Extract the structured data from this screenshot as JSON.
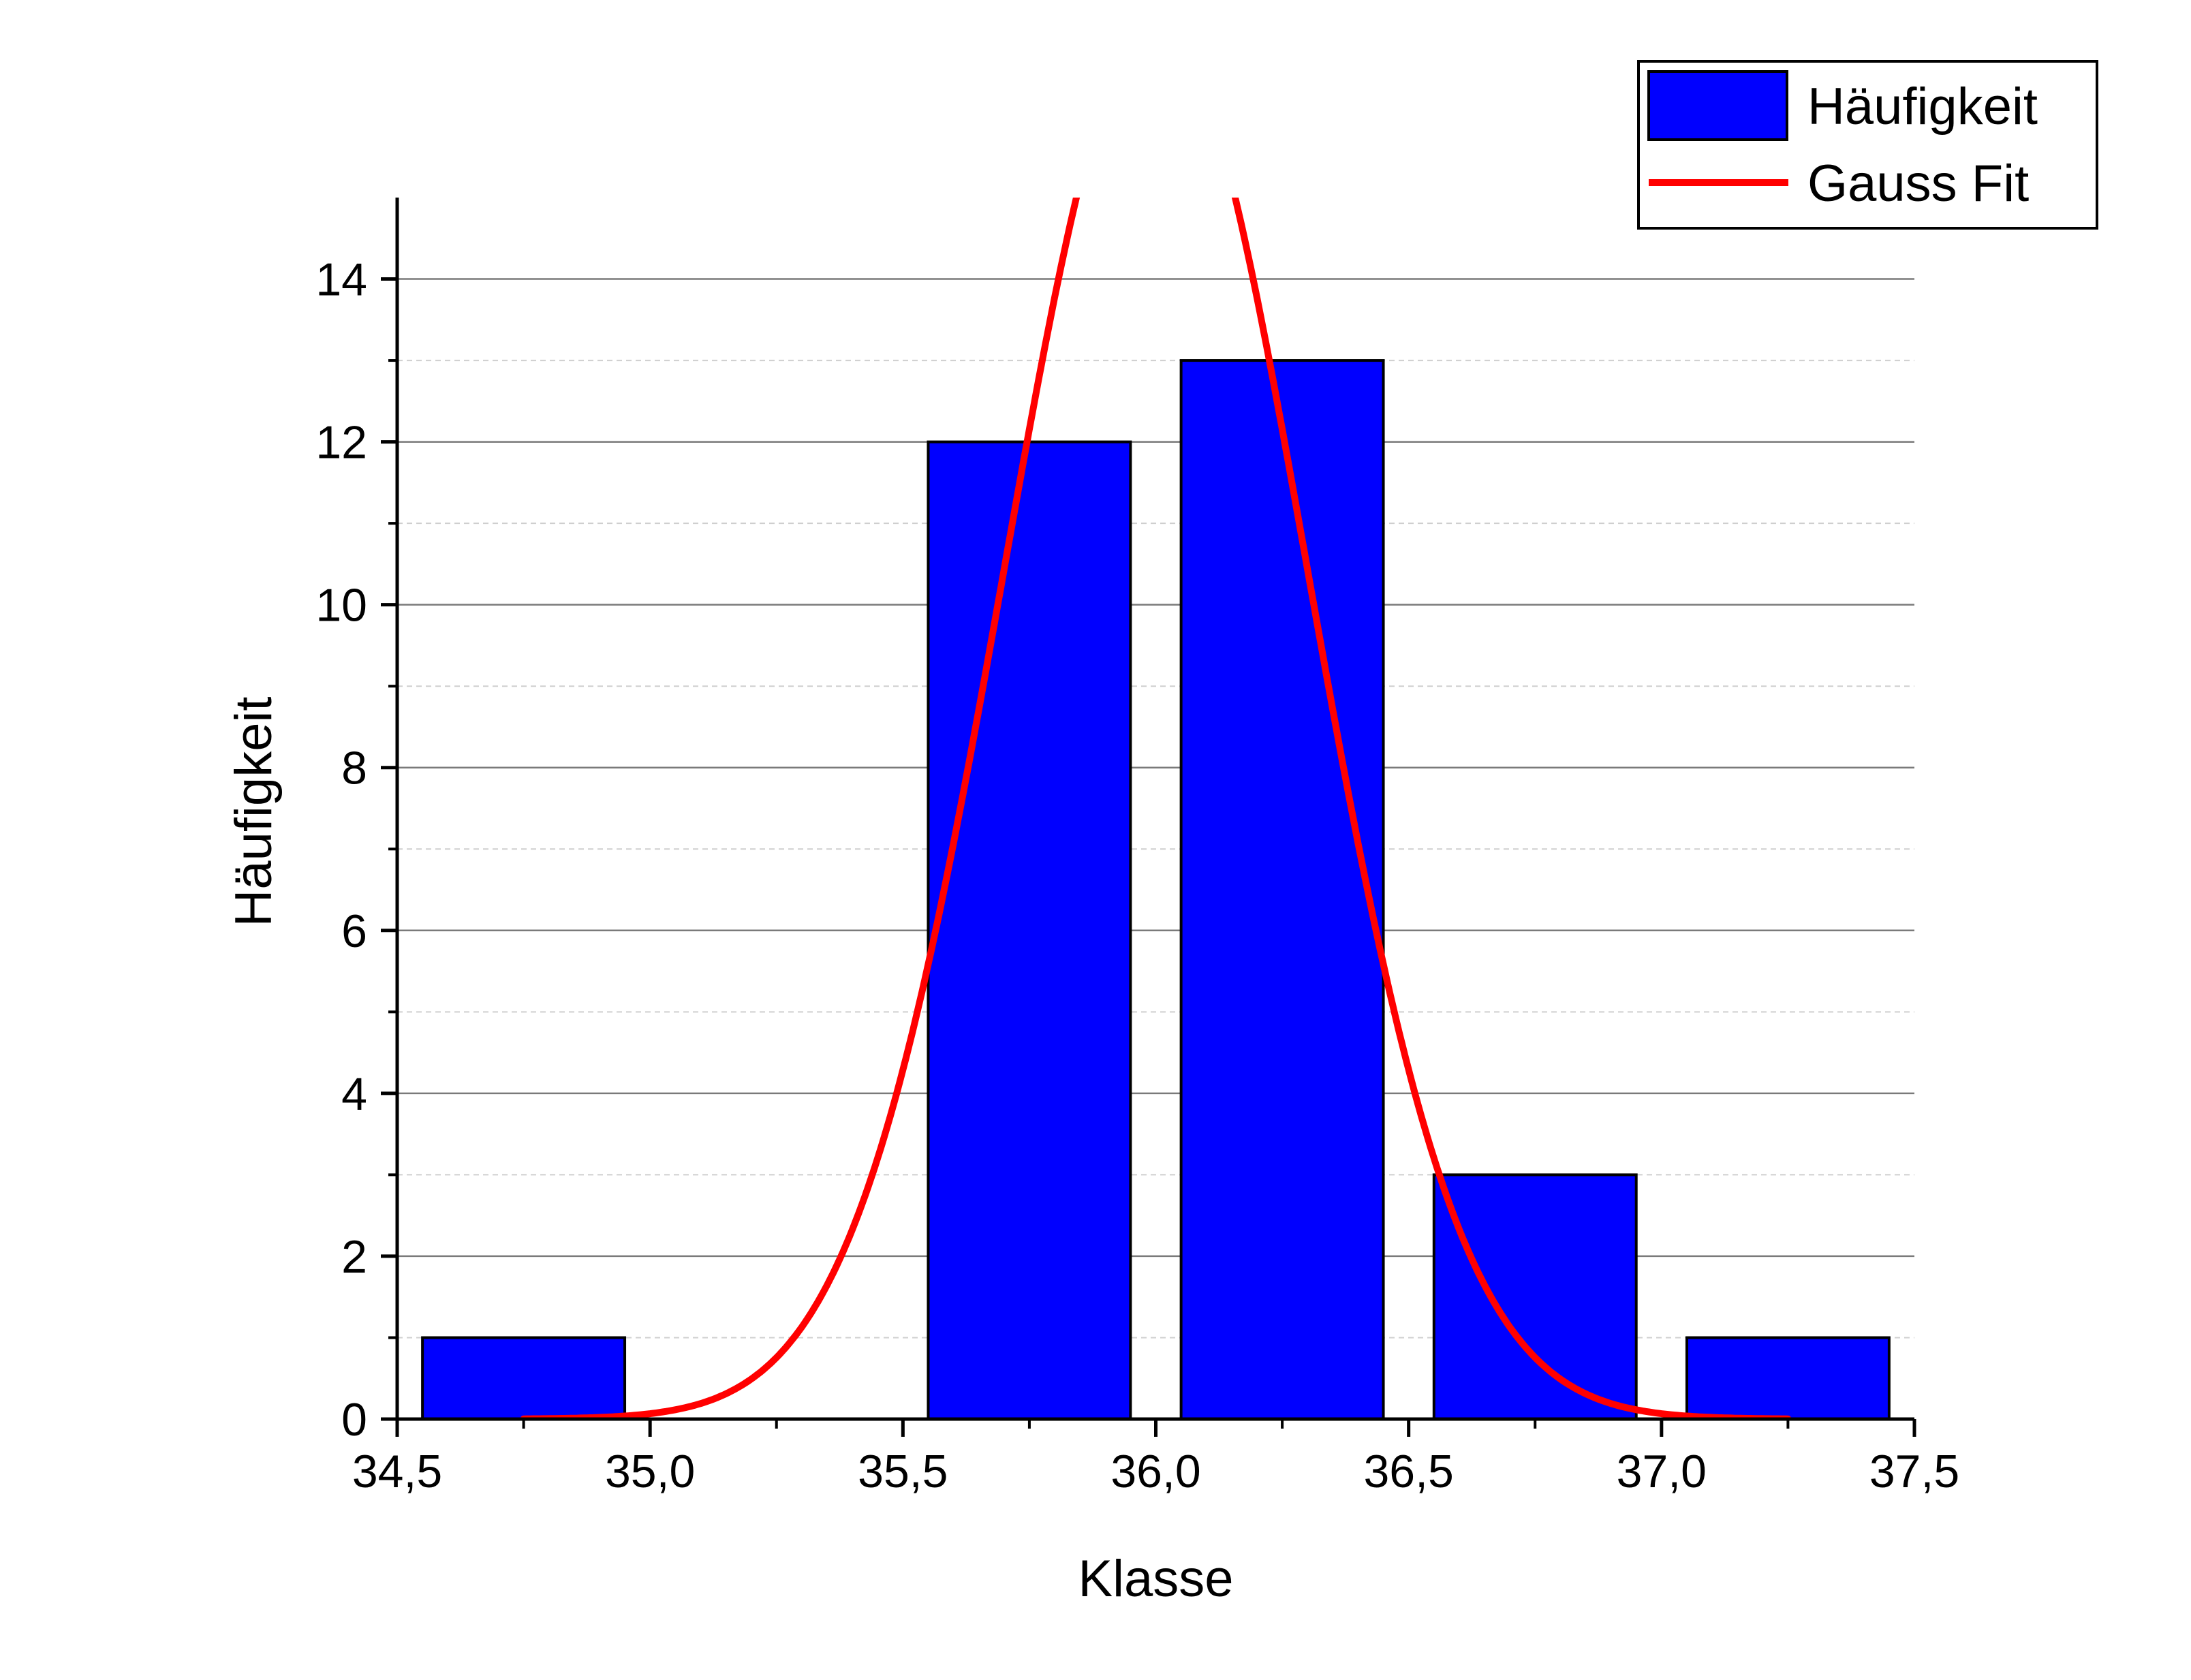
{
  "chart_data": {
    "type": "bar",
    "title": "",
    "xlabel": "Klasse",
    "ylabel": "Häufigkeit",
    "xlim": [
      34.5,
      37.5
    ],
    "ylim": [
      0,
      15
    ],
    "xticks": [
      34.5,
      35.0,
      35.5,
      36.0,
      36.5,
      37.0,
      37.5
    ],
    "xtick_labels": [
      "34,5",
      "35,0",
      "35,5",
      "36,0",
      "36,5",
      "37,0",
      "37,5"
    ],
    "yticks": [
      0,
      2,
      4,
      6,
      8,
      10,
      12,
      14
    ],
    "ytick_labels": [
      "0",
      "2",
      "4",
      "6",
      "8",
      "10",
      "12",
      "14"
    ],
    "grid": {
      "major_y": true,
      "minor_y": true
    },
    "legend_position": "top-right",
    "bars": {
      "name": "Häufigkeit",
      "color": "#0000ff",
      "edge_color": "#000000",
      "bin_width": 0.4,
      "x": [
        34.75,
        35.25,
        35.75,
        36.25,
        36.75,
        37.25
      ],
      "values": [
        1,
        0,
        12,
        13,
        3,
        1
      ]
    },
    "fit": {
      "name": "Gauss Fit",
      "color": "#ff0000",
      "x_range": [
        34.75,
        37.25
      ],
      "y0": 0,
      "center": 36.0,
      "sigma": 0.3,
      "amplitude": 17.2
    }
  }
}
